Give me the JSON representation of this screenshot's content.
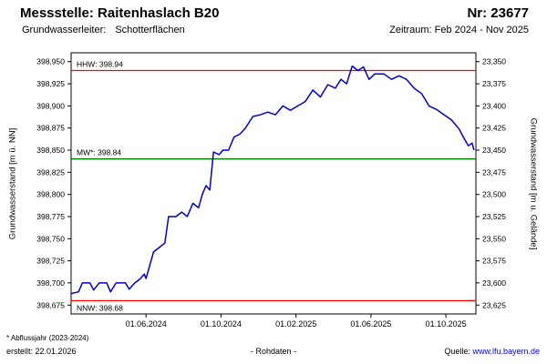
{
  "header": {
    "station_label": "Messstelle: Raitenhaslach B20",
    "number_label": "Nr: 23677",
    "aquifer_label": "Grundwasserleiter:",
    "aquifer_value": "Schotterflächen",
    "period_label": "Zeitraum: Feb 2024 - Nov 2025"
  },
  "footer": {
    "note": "* Abflussjahr (2023-2024)",
    "created": "erstellt:  22.01.2026",
    "data_type": "- Rohdaten -",
    "source_label": "Quelle:",
    "source_link": "www.lfu.bayern.de"
  },
  "colors": {
    "series_blue": "#0000cc",
    "reference_red": "#ff0000",
    "reference_green": "#008000",
    "link_blue": "#0000ee",
    "axis_black": "#000000"
  },
  "chart_data": {
    "type": "line",
    "title": "",
    "ylabel_left": "Grundwasserstand [m ü. NN]",
    "ylabel_right": "Grundwasserstand [m u. Gelände]",
    "xlabel": "",
    "grid": false,
    "xlim": [
      0,
      21.6
    ],
    "ylim_left": [
      398.665,
      398.96
    ],
    "x_tick_positions": [
      4,
      8,
      12,
      16,
      20
    ],
    "x_tick_labels": [
      "01.06.2024",
      "01.10.2024",
      "01.02.2025",
      "01.06.2025",
      "01.10.2025"
    ],
    "y_ticks_left": [
      398.675,
      398.7,
      398.725,
      398.75,
      398.775,
      398.8,
      398.825,
      398.85,
      398.875,
      398.9,
      398.925,
      398.95
    ],
    "y_tick_labels_left": [
      "398,675",
      "398,700",
      "398,725",
      "398,750",
      "398,775",
      "398,800",
      "398,825",
      "398,850",
      "398,875",
      "398,900",
      "398,925",
      "398,950"
    ],
    "y_tick_labels_right": [
      "23,625",
      "23,600",
      "23,575",
      "23,550",
      "23,525",
      "23,500",
      "23,475",
      "23,450",
      "23,425",
      "23,400",
      "23,375",
      "23,350"
    ],
    "reference_lines": [
      {
        "name": "HHW",
        "label": "HHW: 398.94",
        "value": 398.94,
        "color": "#ff0000",
        "label_pos": "above"
      },
      {
        "name": "MW",
        "label": "MW*: 398.84",
        "value": 398.84,
        "color": "#008000",
        "label_pos": "above"
      },
      {
        "name": "NNW",
        "label": "NNW: 398.68",
        "value": 398.68,
        "color": "#ff0000",
        "label_pos": "below"
      }
    ],
    "series": [
      {
        "name": "Grundwasserstand Rohdaten",
        "color": "#0000cc",
        "x_unit": "months since 2024-02-01",
        "points": [
          [
            0.0,
            398.688
          ],
          [
            0.4,
            398.69
          ],
          [
            0.6,
            398.7
          ],
          [
            1.0,
            398.7
          ],
          [
            1.2,
            398.692
          ],
          [
            1.5,
            398.7
          ],
          [
            1.9,
            398.7
          ],
          [
            2.1,
            398.69
          ],
          [
            2.4,
            398.7
          ],
          [
            2.9,
            398.7
          ],
          [
            3.1,
            398.693
          ],
          [
            3.4,
            398.7
          ],
          [
            3.7,
            398.705
          ],
          [
            3.9,
            398.71
          ],
          [
            4.0,
            398.705
          ],
          [
            4.2,
            398.72
          ],
          [
            4.4,
            398.735
          ],
          [
            4.7,
            398.74
          ],
          [
            5.0,
            398.745
          ],
          [
            5.2,
            398.775
          ],
          [
            5.6,
            398.775
          ],
          [
            5.9,
            398.78
          ],
          [
            6.2,
            398.775
          ],
          [
            6.5,
            398.79
          ],
          [
            6.8,
            398.785
          ],
          [
            7.0,
            398.8
          ],
          [
            7.2,
            398.81
          ],
          [
            7.4,
            398.805
          ],
          [
            7.6,
            398.848
          ],
          [
            7.9,
            398.845
          ],
          [
            8.1,
            398.85
          ],
          [
            8.4,
            398.85
          ],
          [
            8.7,
            398.865
          ],
          [
            9.0,
            398.868
          ],
          [
            9.3,
            398.875
          ],
          [
            9.7,
            398.888
          ],
          [
            10.1,
            398.89
          ],
          [
            10.5,
            398.893
          ],
          [
            10.9,
            398.89
          ],
          [
            11.3,
            398.9
          ],
          [
            11.7,
            398.895
          ],
          [
            12.1,
            398.9
          ],
          [
            12.5,
            398.905
          ],
          [
            12.9,
            398.918
          ],
          [
            13.3,
            398.91
          ],
          [
            13.7,
            398.924
          ],
          [
            14.1,
            398.92
          ],
          [
            14.4,
            398.93
          ],
          [
            14.7,
            398.925
          ],
          [
            15.0,
            398.945
          ],
          [
            15.3,
            398.94
          ],
          [
            15.6,
            398.944
          ],
          [
            15.9,
            398.93
          ],
          [
            16.2,
            398.936
          ],
          [
            16.7,
            398.936
          ],
          [
            17.1,
            398.93
          ],
          [
            17.5,
            398.934
          ],
          [
            17.9,
            398.93
          ],
          [
            18.3,
            398.92
          ],
          [
            18.7,
            398.914
          ],
          [
            19.1,
            398.9
          ],
          [
            19.5,
            398.896
          ],
          [
            19.9,
            398.89
          ],
          [
            20.3,
            398.884
          ],
          [
            20.7,
            398.874
          ],
          [
            21.0,
            398.862
          ],
          [
            21.2,
            398.855
          ],
          [
            21.4,
            398.858
          ],
          [
            21.5,
            398.85
          ]
        ]
      }
    ]
  }
}
